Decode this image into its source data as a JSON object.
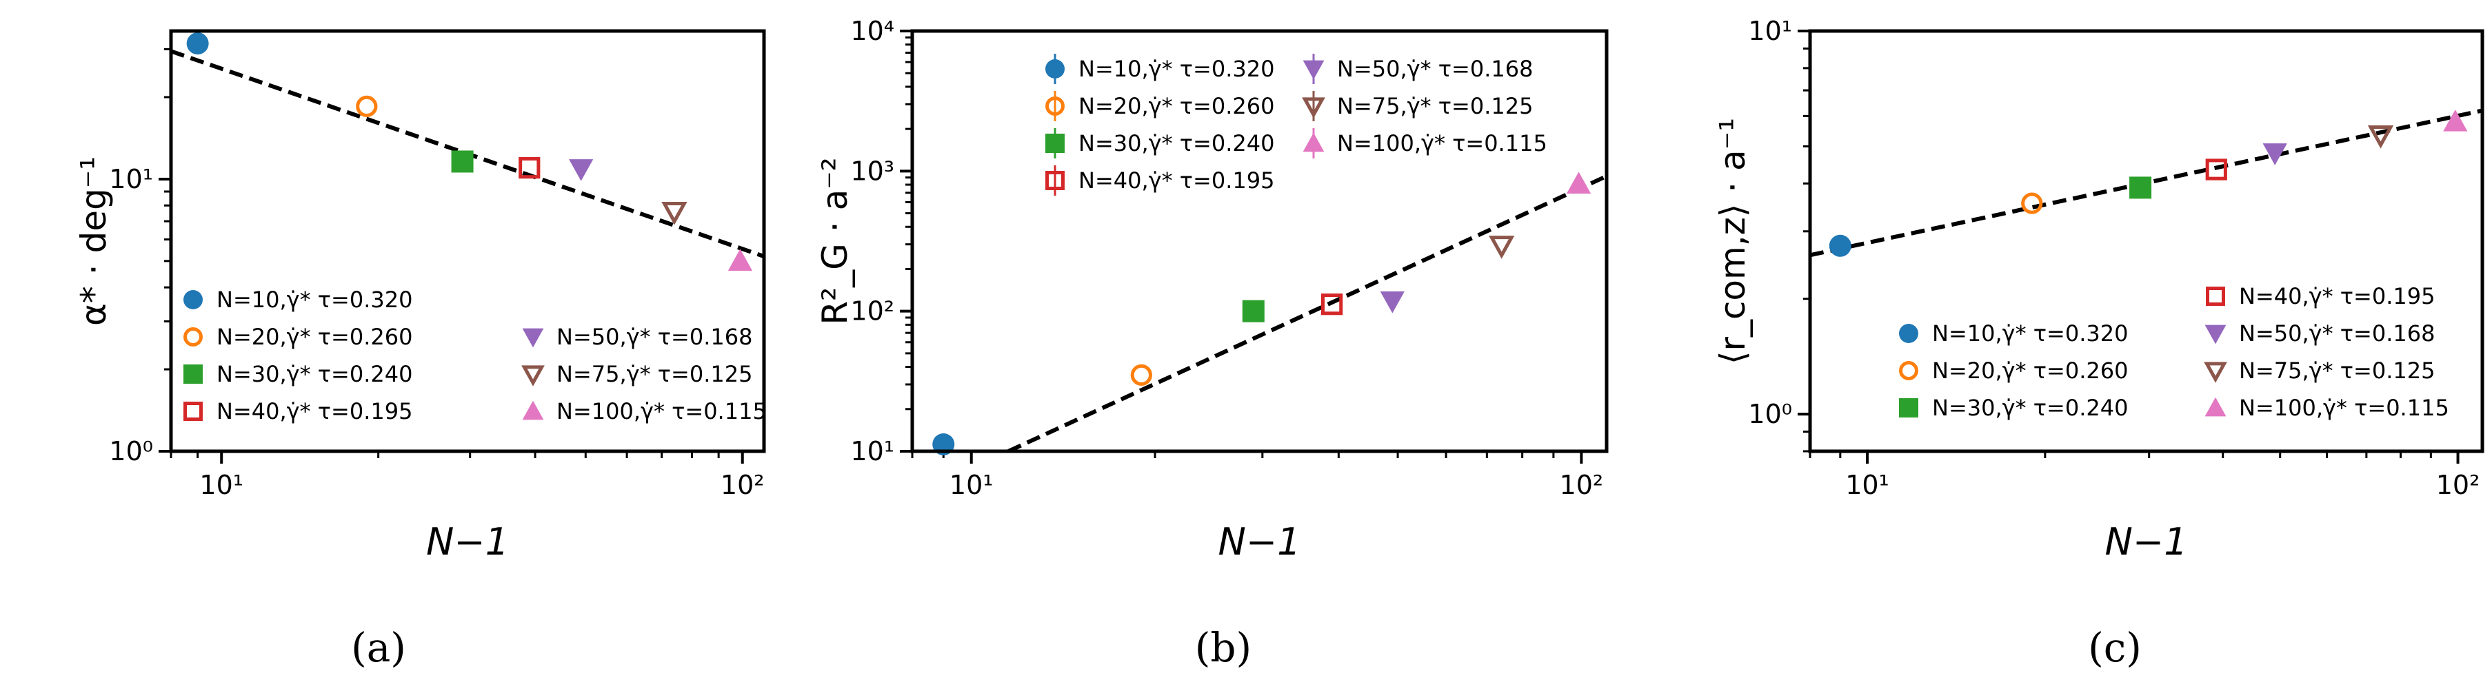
{
  "marker_styles": [
    {
      "color": "#1f77b4",
      "shape": "circle",
      "filled": true
    },
    {
      "color": "#ff7f0e",
      "shape": "circle",
      "filled": false
    },
    {
      "color": "#2ca02c",
      "shape": "square",
      "filled": true
    },
    {
      "color": "#d62728",
      "shape": "square",
      "filled": false
    },
    {
      "color": "#9467bd",
      "shape": "triangle-down",
      "filled": true
    },
    {
      "color": "#8c564b",
      "shape": "triangle-down",
      "filled": false
    },
    {
      "color": "#e377c2",
      "shape": "triangle-up",
      "filled": true
    }
  ],
  "chart_data": [
    {
      "type": "scatter",
      "panel": "(a)",
      "caption_letter": "a",
      "xlabel": "N−1",
      "ylabel": "α* · deg⁻¹",
      "xscale": "log",
      "yscale": "log",
      "xlim": [
        8,
        110
      ],
      "ylim": [
        1,
        35
      ],
      "xticks": [
        {
          "value": 10,
          "label": "10¹"
        },
        {
          "value": 100,
          "label": "10²"
        }
      ],
      "yticks": [
        {
          "value": 1,
          "label": "10⁰"
        },
        {
          "value": 10,
          "label": "10¹"
        }
      ],
      "fit_line": {
        "style": "dashed",
        "color": "#000000",
        "x1": 8,
        "y1": 29.5,
        "x2": 110,
        "y2": 5.2
      },
      "legend": {
        "location": "lower-left",
        "ncol": 2
      },
      "series": [
        {
          "name": "N=10,γ̇* τ=0.320",
          "x": 9,
          "y": 31.5
        },
        {
          "name": "N=20,γ̇* τ=0.260",
          "x": 19,
          "y": 18.5
        },
        {
          "name": "N=30,γ̇* τ=0.240",
          "x": 29,
          "y": 11.6
        },
        {
          "name": "N=40,γ̇* τ=0.195",
          "x": 39,
          "y": 11.0
        },
        {
          "name": "N=50,γ̇* τ=0.168",
          "x": 49,
          "y": 10.9
        },
        {
          "name": "N=75,γ̇* τ=0.125",
          "x": 74,
          "y": 7.6
        },
        {
          "name": "N=100,γ̇* τ=0.115",
          "x": 99,
          "y": 5.0
        }
      ]
    },
    {
      "type": "scatter",
      "panel": "(b)",
      "caption_letter": "b",
      "xlabel": "N−1",
      "ylabel": "R²_G · a⁻²",
      "xscale": "log",
      "yscale": "log",
      "xlim": [
        8,
        110
      ],
      "ylim": [
        10,
        10000
      ],
      "xticks": [
        {
          "value": 10,
          "label": "10¹"
        },
        {
          "value": 100,
          "label": "10²"
        }
      ],
      "yticks": [
        {
          "value": 10,
          "label": "10¹"
        },
        {
          "value": 100,
          "label": "10²"
        },
        {
          "value": 1000,
          "label": "10³"
        },
        {
          "value": 10000,
          "label": "10⁴"
        }
      ],
      "fit_line": {
        "style": "dashed",
        "color": "#000000",
        "x1": 11.5,
        "y1": 10,
        "x2": 110,
        "y2": 920
      },
      "legend": {
        "location": "upper-left",
        "ncol": 2
      },
      "series": [
        {
          "name": "N=10,γ̇* τ=0.320",
          "x": 9,
          "y": 11.2
        },
        {
          "name": "N=20,γ̇* τ=0.260",
          "x": 19,
          "y": 35
        },
        {
          "name": "N=30,γ̇* τ=0.240",
          "x": 29,
          "y": 100
        },
        {
          "name": "N=40,γ̇* τ=0.195",
          "x": 39,
          "y": 112
        },
        {
          "name": "N=50,γ̇* τ=0.168",
          "x": 49,
          "y": 118
        },
        {
          "name": "N=75,γ̇* τ=0.125",
          "x": 74,
          "y": 295
        },
        {
          "name": "N=100,γ̇* τ=0.115",
          "x": 99,
          "y": 810
        }
      ]
    },
    {
      "type": "scatter",
      "panel": "(c)",
      "caption_letter": "c",
      "xlabel": "N−1",
      "ylabel": "⟨r_com,z⟩ · a⁻¹",
      "xscale": "log",
      "yscale": "log",
      "xlim": [
        8,
        110
      ],
      "ylim": [
        0.8,
        10
      ],
      "xticks": [
        {
          "value": 10,
          "label": "10¹"
        },
        {
          "value": 100,
          "label": "10²"
        }
      ],
      "yticks": [
        {
          "value": 1,
          "label": "10⁰"
        },
        {
          "value": 10,
          "label": "10¹"
        }
      ],
      "fit_line": {
        "style": "dashed",
        "color": "#000000",
        "x1": 8,
        "y1": 2.6,
        "x2": 110,
        "y2": 6.2
      },
      "legend": {
        "location": "lower-right",
        "ncol": 2
      },
      "series": [
        {
          "name": "N=10,γ̇* τ=0.320",
          "x": 9,
          "y": 2.75
        },
        {
          "name": "N=20,γ̇* τ=0.260",
          "x": 19,
          "y": 3.55
        },
        {
          "name": "N=30,γ̇* τ=0.240",
          "x": 29,
          "y": 3.9
        },
        {
          "name": "N=40,γ̇* τ=0.195",
          "x": 39,
          "y": 4.35
        },
        {
          "name": "N=50,γ̇* τ=0.168",
          "x": 49,
          "y": 4.8
        },
        {
          "name": "N=75,γ̇* τ=0.125",
          "x": 74,
          "y": 5.35
        },
        {
          "name": "N=100,γ̇* τ=0.115",
          "x": 99,
          "y": 5.8
        }
      ]
    }
  ]
}
